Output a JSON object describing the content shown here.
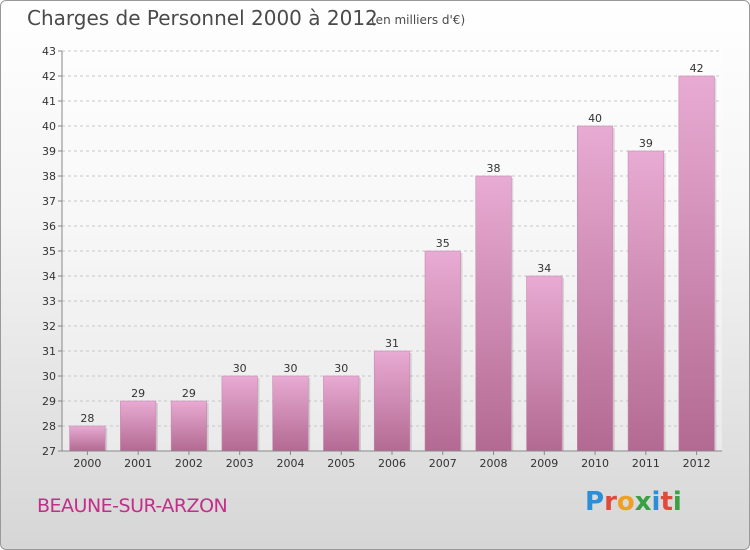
{
  "header": {
    "title": "Charges de Personnel 2000 à 2012",
    "subtitle": "(en milliers d'€)"
  },
  "footer": {
    "city": "BEAUNE-SUR-ARZON",
    "brand": "Proxiti"
  },
  "colors": {
    "bar_light": "#e6a7d0",
    "bar_dark": "#b4688f",
    "accent": "#c42d8a"
  },
  "chart_data": {
    "type": "bar",
    "title": "Charges de Personnel 2000 à 2012",
    "subtitle": "(en milliers d'€)",
    "xlabel": "",
    "ylabel": "",
    "categories": [
      "2000",
      "2001",
      "2002",
      "2003",
      "2004",
      "2005",
      "2006",
      "2007",
      "2008",
      "2009",
      "2010",
      "2011",
      "2012"
    ],
    "values": [
      28,
      29,
      29,
      30,
      30,
      30,
      31,
      35,
      38,
      34,
      40,
      39,
      42
    ],
    "ylim": [
      27,
      43
    ],
    "yticks": [
      27,
      28,
      29,
      30,
      31,
      32,
      33,
      34,
      35,
      36,
      37,
      38,
      39,
      40,
      41,
      42,
      43
    ],
    "grid": "horizontal dashed"
  }
}
